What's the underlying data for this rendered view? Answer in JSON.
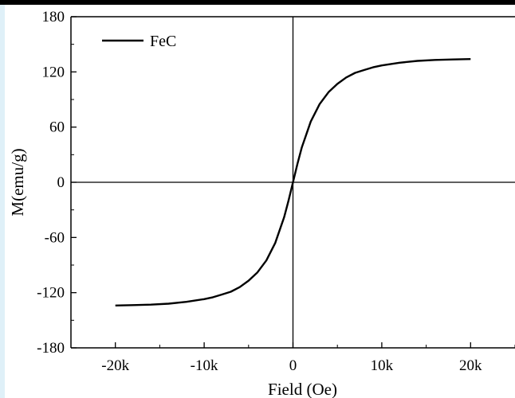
{
  "chart_data": {
    "type": "line",
    "title": "",
    "xlabel": "Field (Oe)",
    "ylabel": "M(emu/g)",
    "xlim": [
      -25000,
      25000
    ],
    "ylim": [
      -180,
      180
    ],
    "x_ticks": [
      -20000,
      -10000,
      0,
      10000,
      20000
    ],
    "x_tick_labels": [
      "-20k",
      "-10k",
      "0",
      "10k",
      "20k"
    ],
    "y_ticks": [
      -180,
      -120,
      -60,
      0,
      60,
      120,
      180
    ],
    "y_tick_labels": [
      "-180",
      "-120",
      "-60",
      "0",
      "60",
      "120",
      "180"
    ],
    "legend_position": "top-left",
    "series": [
      {
        "name": "FeC",
        "color": "#000000",
        "points": [
          [
            -20000,
            -134
          ],
          [
            -18000,
            -133.5
          ],
          [
            -16000,
            -133
          ],
          [
            -14000,
            -132
          ],
          [
            -12000,
            -130
          ],
          [
            -10000,
            -127
          ],
          [
            -9000,
            -125
          ],
          [
            -8000,
            -122
          ],
          [
            -7000,
            -119
          ],
          [
            -6000,
            -114
          ],
          [
            -5000,
            -107
          ],
          [
            -4000,
            -98
          ],
          [
            -3000,
            -85
          ],
          [
            -2000,
            -66
          ],
          [
            -1000,
            -38
          ],
          [
            -500,
            -20
          ],
          [
            0,
            0
          ],
          [
            500,
            20
          ],
          [
            1000,
            38
          ],
          [
            2000,
            66
          ],
          [
            3000,
            85
          ],
          [
            4000,
            98
          ],
          [
            5000,
            107
          ],
          [
            6000,
            114
          ],
          [
            7000,
            119
          ],
          [
            8000,
            122
          ],
          [
            9000,
            125
          ],
          [
            10000,
            127
          ],
          [
            12000,
            130
          ],
          [
            14000,
            132
          ],
          [
            16000,
            133
          ],
          [
            18000,
            133.5
          ],
          [
            20000,
            134
          ]
        ]
      }
    ]
  }
}
